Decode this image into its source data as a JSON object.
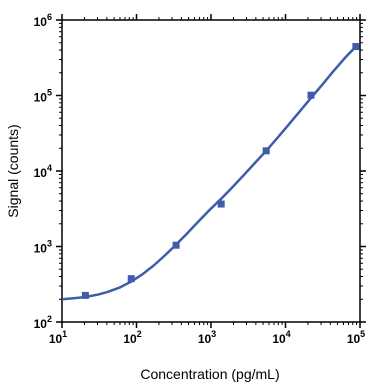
{
  "chart_data": {
    "type": "scatter",
    "title": "",
    "xlabel": "Concentration (pg/mL)",
    "ylabel": "Signal (counts)",
    "x_scale": "log10",
    "y_scale": "log10",
    "xlim": [
      10,
      100000
    ],
    "ylim": [
      100,
      1000000
    ],
    "x_ticks": [
      {
        "value": 10,
        "base": "10",
        "exp": "1"
      },
      {
        "value": 100,
        "base": "10",
        "exp": "2"
      },
      {
        "value": 1000,
        "base": "10",
        "exp": "3"
      },
      {
        "value": 10000,
        "base": "10",
        "exp": "4"
      },
      {
        "value": 100000,
        "base": "10",
        "exp": "5"
      }
    ],
    "y_ticks": [
      {
        "value": 100,
        "base": "10",
        "exp": "2"
      },
      {
        "value": 1000,
        "base": "10",
        "exp": "3"
      },
      {
        "value": 10000,
        "base": "10",
        "exp": "4"
      },
      {
        "value": 100000,
        "base": "10",
        "exp": "5"
      },
      {
        "value": 1000000,
        "base": "10",
        "exp": "6"
      }
    ],
    "grid": false,
    "legend": "none",
    "series": [
      {
        "color": "#3f5ba9",
        "marker": "square",
        "x": [
          20.6,
          85,
          340,
          1370,
          5500,
          22000,
          88000
        ],
        "y": [
          225,
          375,
          1040,
          3650,
          18500,
          101000,
          445000
        ]
      }
    ],
    "fit_curve": {
      "color": "#3f5ba9",
      "x": [
        10,
        15,
        20,
        30,
        40,
        60,
        85,
        120,
        170,
        240,
        340,
        480,
        680,
        960,
        1370,
        1940,
        2750,
        3900,
        5500,
        7800,
        11000,
        15500,
        22000,
        31000,
        44000,
        62000,
        88000
      ],
      "y": [
        200,
        207,
        214,
        230,
        248,
        287,
        343,
        428,
        560,
        760,
        1060,
        1500,
        2150,
        3050,
        4300,
        6100,
        8800,
        12800,
        18500,
        27500,
        41000,
        61500,
        93000,
        138000,
        210000,
        310000,
        445000
      ]
    }
  }
}
